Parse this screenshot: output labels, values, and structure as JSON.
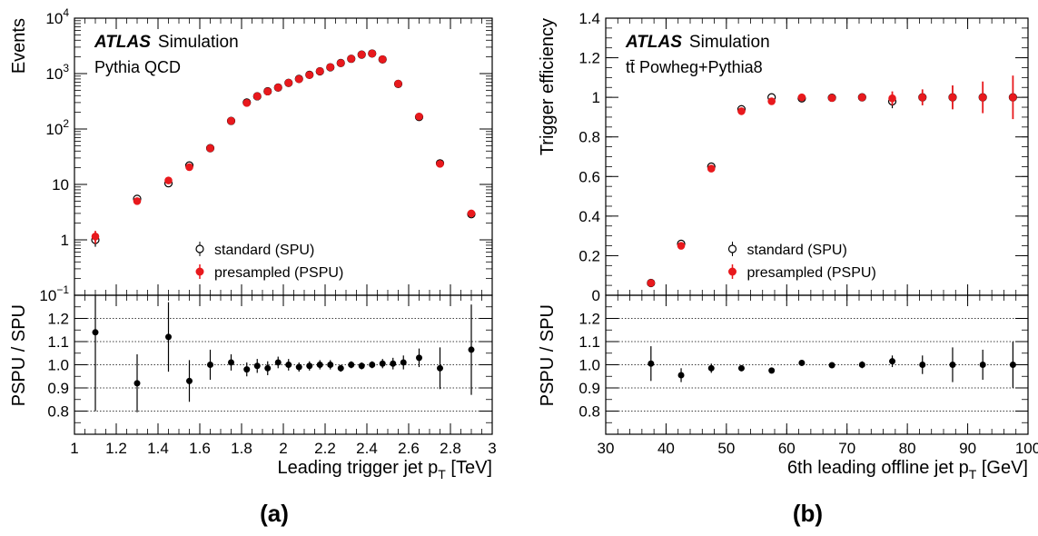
{
  "chart_data": [
    {
      "id": "a",
      "type": "scatter",
      "panel_label": "(a)",
      "atlas_label": "ATLAS",
      "atlas_tag": "Simulation",
      "sample": "Pythia QCD",
      "xlabel": "Leading trigger jet p",
      "xlabel_sub": "T",
      "xlabel_unit": " [TeV]",
      "xlim": [
        1,
        3
      ],
      "xticks": [
        "1",
        "1.2",
        "1.4",
        "1.6",
        "1.8",
        "2",
        "2.2",
        "2.4",
        "2.6",
        "2.8",
        "3"
      ],
      "xtick_values": [
        1,
        1.2,
        1.4,
        1.6,
        1.8,
        2,
        2.2,
        2.4,
        2.6,
        2.8,
        3
      ],
      "top": {
        "ylabel": "Events",
        "log_scale": true,
        "ylim": [
          0.1,
          10000
        ],
        "yticks": [
          {
            "value": 0.1,
            "base": "10",
            "exp": "−1"
          },
          {
            "value": 1,
            "text": "1"
          },
          {
            "value": 10,
            "text": "10"
          },
          {
            "value": 100,
            "base": "10",
            "exp": "2"
          },
          {
            "value": 1000,
            "base": "10",
            "exp": "3"
          },
          {
            "value": 10000,
            "base": "10",
            "exp": "4"
          }
        ],
        "legend": [
          "standard (SPU)",
          "presampled (PSPU)"
        ],
        "legend_position": "bottom-right",
        "series": [
          {
            "name": "standard (SPU)",
            "marker": "open-circle",
            "color": "#000000",
            "x": [
              1.1,
              1.3,
              1.45,
              1.55,
              1.65,
              1.75,
              1.825,
              1.875,
              1.925,
              1.975,
              2.025,
              2.075,
              2.125,
              2.175,
              2.225,
              2.275,
              2.325,
              2.375,
              2.425,
              2.475,
              2.55,
              2.65,
              2.75,
              2.9
            ],
            "y": [
              1.0,
              5.5,
              10.5,
              22,
              45,
              140,
              300,
              390,
              480,
              560,
              680,
              800,
              950,
              1100,
              1300,
              1550,
              1850,
              2200,
              2300,
              1800,
              650,
              165,
              24,
              2.9
            ],
            "err_low": [
              0.25,
              0.6,
              0.9,
              1.5,
              2,
              5,
              8,
              9,
              10,
              11,
              12,
              14,
              15,
              17,
              20,
              22,
              25,
              30,
              30,
              25,
              15,
              6,
              2,
              0.25
            ],
            "err_high": [
              0.25,
              0.6,
              0.9,
              1.5,
              2,
              5,
              8,
              9,
              10,
              11,
              12,
              14,
              15,
              17,
              20,
              22,
              25,
              30,
              30,
              25,
              15,
              6,
              2,
              0.25
            ]
          },
          {
            "name": "presampled (PSPU)",
            "marker": "filled-circle",
            "color": "#e8191d",
            "x": [
              1.1,
              1.3,
              1.45,
              1.55,
              1.65,
              1.75,
              1.825,
              1.875,
              1.925,
              1.975,
              2.025,
              2.075,
              2.125,
              2.175,
              2.225,
              2.275,
              2.325,
              2.375,
              2.425,
              2.475,
              2.55,
              2.65,
              2.75,
              2.9
            ],
            "y": [
              1.15,
              5.0,
              11.8,
              20.5,
              45,
              140,
              295,
              390,
              475,
              560,
              680,
              795,
              945,
              1100,
              1305,
              1550,
              1850,
              2200,
              2300,
              1810,
              655,
              168,
              23.5,
              3.0
            ],
            "err_low": [
              0.3,
              0.6,
              1,
              1.5,
              2,
              5,
              8,
              9,
              10,
              11,
              12,
              14,
              15,
              17,
              20,
              22,
              25,
              30,
              30,
              25,
              15,
              6,
              2,
              0.25
            ],
            "err_high": [
              0.3,
              0.6,
              1,
              1.5,
              2,
              5,
              8,
              9,
              10,
              11,
              12,
              14,
              15,
              17,
              20,
              22,
              25,
              30,
              30,
              25,
              15,
              6,
              2,
              0.25
            ]
          }
        ]
      },
      "ratio": {
        "ylabel": "PSPU / SPU",
        "ylim": [
          0.7,
          1.3
        ],
        "yticks": [
          "0.8",
          "0.9",
          "1.0",
          "1.1",
          "1.2"
        ],
        "ytick_values": [
          0.8,
          0.9,
          1.0,
          1.1,
          1.2
        ],
        "gridlines": [
          0.8,
          0.9,
          1.0,
          1.1,
          1.2
        ],
        "x": [
          1.1,
          1.3,
          1.45,
          1.55,
          1.65,
          1.75,
          1.825,
          1.875,
          1.925,
          1.975,
          2.025,
          2.075,
          2.125,
          2.175,
          2.225,
          2.275,
          2.325,
          2.375,
          2.425,
          2.475,
          2.525,
          2.575,
          2.65,
          2.75,
          2.9
        ],
        "y": [
          1.14,
          0.92,
          1.12,
          0.93,
          1.0,
          1.01,
          0.98,
          0.995,
          0.985,
          1.01,
          1.0,
          0.99,
          0.995,
          1.0,
          1.0,
          0.985,
          1.0,
          0.995,
          1.0,
          1.005,
          1.005,
          1.01,
          1.03,
          0.985,
          1.065
        ],
        "err": [
          0.34,
          0.125,
          0.15,
          0.09,
          0.065,
          0.035,
          0.03,
          0.03,
          0.03,
          0.025,
          0.025,
          0.02,
          0.02,
          0.02,
          0.02,
          0.015,
          0.015,
          0.015,
          0.015,
          0.02,
          0.025,
          0.03,
          0.04,
          0.09,
          0.195
        ]
      }
    },
    {
      "id": "b",
      "type": "scatter",
      "panel_label": "(b)",
      "atlas_label": "ATLAS",
      "atlas_tag": "Simulation",
      "sample": "tt̄ Powheg+Pythia8",
      "xlabel": "6th leading offline jet p",
      "xlabel_sub": "T",
      "xlabel_unit": " [GeV]",
      "xlim": [
        30,
        100
      ],
      "xticks": [
        "30",
        "40",
        "50",
        "60",
        "70",
        "80",
        "90",
        "100"
      ],
      "xtick_values": [
        30,
        40,
        50,
        60,
        70,
        80,
        90,
        100
      ],
      "top": {
        "ylabel": "Trigger efficiency",
        "log_scale": false,
        "ylim": [
          0,
          1.4
        ],
        "yticks": [
          {
            "value": 0,
            "text": "0"
          },
          {
            "value": 0.2,
            "text": "0.2"
          },
          {
            "value": 0.4,
            "text": "0.4"
          },
          {
            "value": 0.6,
            "text": "0.6"
          },
          {
            "value": 0.8,
            "text": "0.8"
          },
          {
            "value": 1.0,
            "text": "1"
          },
          {
            "value": 1.2,
            "text": "1.2"
          },
          {
            "value": 1.4,
            "text": "1.4"
          }
        ],
        "legend": [
          "standard (SPU)",
          "presampled (PSPU)"
        ],
        "legend_position": "bottom-right",
        "series": [
          {
            "name": "standard (SPU)",
            "marker": "open-circle",
            "color": "#000000",
            "x": [
              37.5,
              42.5,
              47.5,
              52.5,
              57.5,
              62.5,
              67.5,
              72.5,
              77.5,
              82.5,
              87.5,
              92.5,
              97.5
            ],
            "y": [
              0.062,
              0.26,
              0.65,
              0.94,
              1.0,
              0.995,
              0.998,
              1.0,
              0.98,
              1.0,
              1.0,
              1.0,
              1.0
            ],
            "err": [
              0.004,
              0.005,
              0.01,
              0.01,
              0.01,
              0.01,
              0.015,
              0.02,
              0.035,
              0.04,
              0.06,
              0.07,
              0.09
            ]
          },
          {
            "name": "presampled (PSPU)",
            "marker": "filled-circle",
            "color": "#e8191d",
            "x": [
              37.5,
              42.5,
              47.5,
              52.5,
              57.5,
              62.5,
              67.5,
              72.5,
              77.5,
              82.5,
              87.5,
              92.5,
              97.5
            ],
            "y": [
              0.062,
              0.25,
              0.64,
              0.93,
              0.98,
              1.0,
              0.997,
              1.0,
              0.995,
              1.0,
              1.0,
              1.0,
              1.0
            ],
            "err": [
              0.004,
              0.005,
              0.01,
              0.01,
              0.01,
              0.01,
              0.015,
              0.02,
              0.035,
              0.04,
              0.06,
              0.08,
              0.11
            ]
          }
        ]
      },
      "ratio": {
        "ylabel": "PSPU / SPU",
        "ylim": [
          0.7,
          1.3
        ],
        "yticks": [
          "0.8",
          "0.9",
          "1.0",
          "1.1",
          "1.2"
        ],
        "ytick_values": [
          0.8,
          0.9,
          1.0,
          1.1,
          1.2
        ],
        "gridlines": [
          0.8,
          0.9,
          1.0,
          1.1,
          1.2
        ],
        "x": [
          37.5,
          42.5,
          47.5,
          52.5,
          57.5,
          62.5,
          67.5,
          72.5,
          77.5,
          82.5,
          87.5,
          92.5,
          97.5
        ],
        "y": [
          1.005,
          0.955,
          0.985,
          0.985,
          0.975,
          1.008,
          0.998,
          1.0,
          1.015,
          1.0,
          1.0,
          1.0,
          1.0
        ],
        "err": [
          0.075,
          0.03,
          0.02,
          0.01,
          0.01,
          0.01,
          0.01,
          0.015,
          0.025,
          0.04,
          0.075,
          0.065,
          0.1
        ]
      }
    }
  ]
}
